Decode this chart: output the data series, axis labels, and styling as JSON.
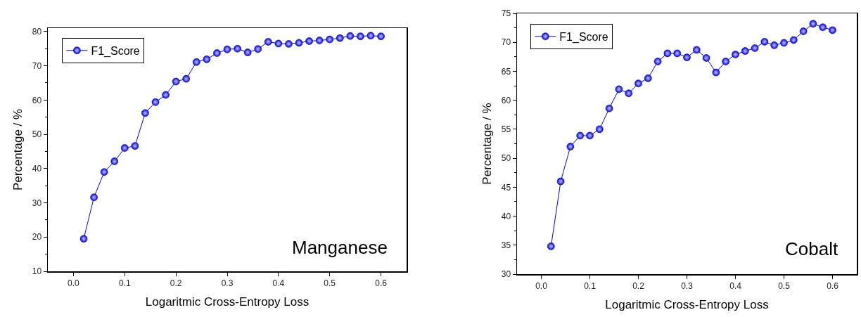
{
  "chart_data": [
    {
      "type": "line",
      "xlabel": "Logaritmic Cross-Entropy Loss",
      "ylabel": "Percentage / %",
      "annotations": [
        "Manganese"
      ],
      "x": [
        0.02,
        0.04,
        0.06,
        0.08,
        0.1,
        0.12,
        0.14,
        0.16,
        0.18,
        0.2,
        0.22,
        0.24,
        0.26,
        0.28,
        0.3,
        0.32,
        0.34,
        0.36,
        0.38,
        0.4,
        0.42,
        0.44,
        0.46,
        0.48,
        0.5,
        0.52,
        0.54,
        0.56,
        0.58,
        0.6
      ],
      "series": [
        {
          "name": "F1_Score",
          "color": "#0000ff",
          "values": [
            19.5,
            31.6,
            39.0,
            42.1,
            46.0,
            46.6,
            56.2,
            59.4,
            61.5,
            65.4,
            66.2,
            71.1,
            71.9,
            73.7,
            74.8,
            75.0,
            73.9,
            74.9,
            77.0,
            76.5,
            76.4,
            76.7,
            77.2,
            77.4,
            77.7,
            78.1,
            78.7,
            78.6,
            78.8,
            78.6
          ]
        }
      ],
      "xlim": [
        -0.05,
        0.65
      ],
      "xticks": [
        {
          "value": 0,
          "label": "0.0"
        },
        0.1,
        0.2,
        0.3,
        0.4,
        0.5,
        0.6
      ],
      "ylim": [
        10,
        81
      ],
      "yticks": [
        10,
        20,
        30,
        40,
        50,
        60,
        70,
        80
      ],
      "grid": false,
      "legend": "top left",
      "marker": "circle",
      "line_style": "solid"
    },
    {
      "type": "line",
      "xlabel": "Logaritmic Cross-Entropy Loss",
      "ylabel": "Percentage / %",
      "annotations": [
        "Cobalt"
      ],
      "x": [
        0.02,
        0.04,
        0.06,
        0.08,
        0.1,
        0.12,
        0.14,
        0.16,
        0.18,
        0.2,
        0.22,
        0.24,
        0.26,
        0.28,
        0.3,
        0.32,
        0.34,
        0.36,
        0.38,
        0.4,
        0.42,
        0.44,
        0.46,
        0.48,
        0.5,
        0.52,
        0.54,
        0.56,
        0.58,
        0.6
      ],
      "series": [
        {
          "name": "F1_Score",
          "color": "#0000ff",
          "values": [
            34.8,
            46.0,
            52.0,
            53.9,
            53.9,
            55.0,
            58.6,
            61.9,
            61.2,
            62.9,
            63.8,
            66.7,
            68.1,
            68.1,
            67.4,
            68.7,
            67.3,
            64.8,
            66.7,
            67.9,
            68.5,
            69.0,
            70.1,
            69.5,
            69.9,
            70.4,
            71.9,
            73.2,
            72.6,
            72.1
          ]
        }
      ],
      "xlim": [
        -0.05,
        0.65
      ],
      "xticks": [
        {
          "value": 0,
          "label": "0.0"
        },
        0.1,
        0.2,
        0.3,
        0.4,
        0.5,
        0.6
      ],
      "ylim": [
        30,
        75
      ],
      "yticks": [
        30,
        35,
        40,
        45,
        50,
        55,
        60,
        65,
        70,
        75
      ],
      "grid": false,
      "legend": "top left",
      "marker": "circle",
      "line_style": "solid"
    }
  ]
}
